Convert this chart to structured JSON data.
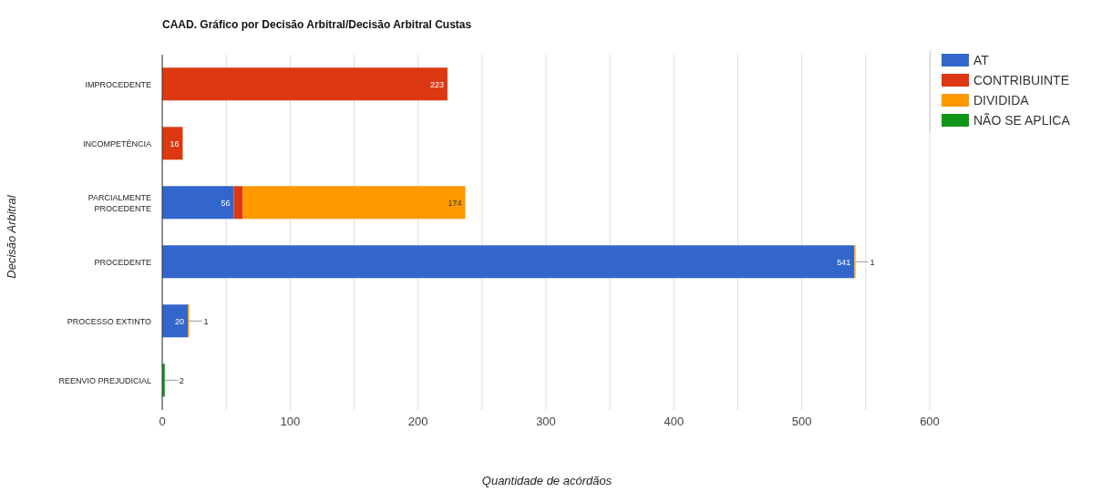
{
  "chart_data": {
    "type": "bar",
    "orientation": "horizontal",
    "stacked": true,
    "title": "CAAD. Gráfico por Decisão Arbitral/Decisão Arbitral Custas",
    "xlabel": "Quantidade de acórdãos",
    "ylabel": "Decisão Arbitral",
    "categories": [
      "IMPROCEDENTE",
      "INCOMPETÊNCIA",
      "PARCIALMENTE PROCEDENTE",
      "PROCEDENTE",
      "PROCESSO EXTINTO",
      "REENVIO PREJUDICIAL"
    ],
    "series": [
      {
        "name": "AT",
        "color": "#3366cc",
        "values": [
          null,
          null,
          56,
          541,
          20,
          null
        ],
        "value_labels": [
          null,
          null,
          "56",
          "541",
          "20",
          null
        ]
      },
      {
        "name": "CONTRIBUINTE",
        "color": "#dc3912",
        "values": [
          223,
          16,
          7,
          null,
          null,
          null
        ],
        "value_labels": [
          "223",
          "16",
          null,
          null,
          null,
          null
        ]
      },
      {
        "name": "DIVIDIDA",
        "color": "#ff9900",
        "values": [
          null,
          null,
          174,
          1,
          1,
          null
        ],
        "value_labels": [
          null,
          null,
          "174",
          "1",
          "1",
          null
        ]
      },
      {
        "name": "NÃO SE APLICA",
        "color": "#109618",
        "values": [
          null,
          null,
          null,
          null,
          null,
          2
        ],
        "value_labels": [
          null,
          null,
          null,
          null,
          null,
          "2"
        ]
      }
    ],
    "xlim": [
      0,
      600
    ],
    "xticks": [
      0,
      {
        "value": 50,
        "label": null
      },
      100,
      {
        "value": 150,
        "label": null
      },
      200,
      {
        "value": 250,
        "label": null
      },
      300,
      {
        "value": 350,
        "label": null
      },
      400,
      {
        "value": 450,
        "label": null
      },
      500,
      {
        "value": 550,
        "label": null
      },
      600
    ],
    "grid": "x",
    "legend": "top right"
  }
}
